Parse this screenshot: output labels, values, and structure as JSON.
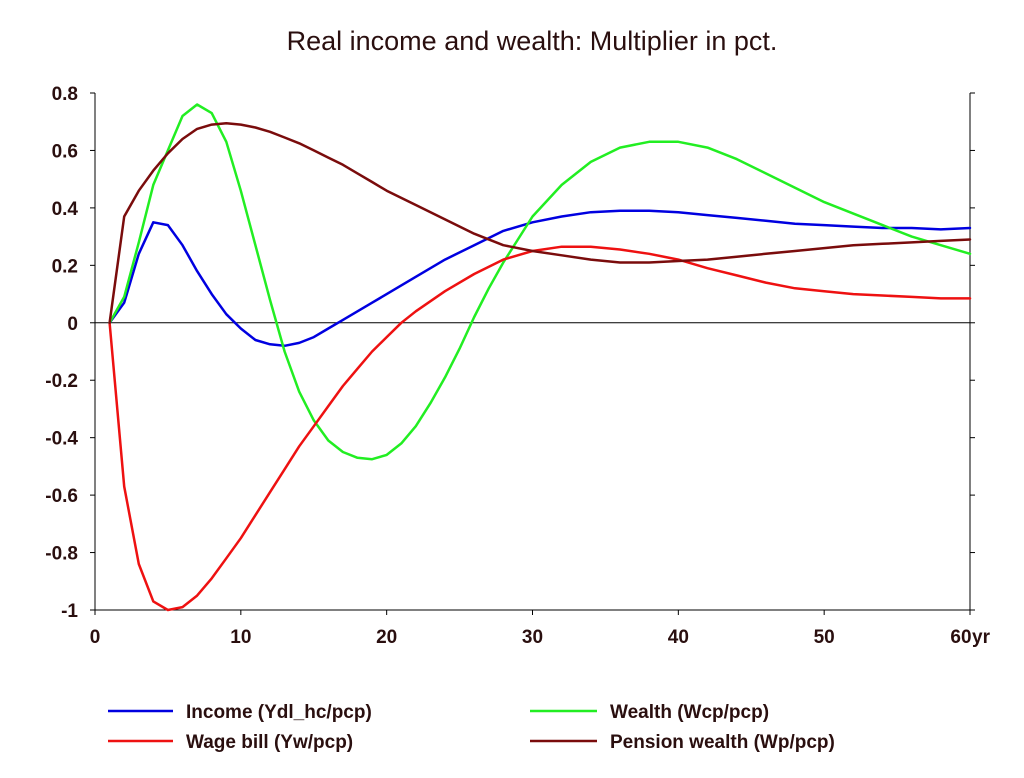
{
  "chart_data": {
    "type": "line",
    "title": "Real income and wealth: Multiplier in pct.",
    "x_unit_label": "yr",
    "xlim": [
      0,
      60
    ],
    "ylim": [
      -1,
      0.8
    ],
    "x_ticks": [
      0,
      10,
      20,
      30,
      40,
      50,
      60
    ],
    "x_tick_labels": [
      "0",
      "10",
      "20",
      "30",
      "40",
      "50",
      "60"
    ],
    "y_ticks": [
      0.8,
      0.6,
      0.4,
      0.2,
      0,
      -0.2,
      -0.4,
      -0.6,
      -0.8,
      -1
    ],
    "y_tick_labels": [
      "0.8",
      "0.6",
      "0.4",
      "0.2",
      "0",
      "-0.2",
      "-0.4",
      "-0.6",
      "-0.8",
      "-1"
    ],
    "zero_line": true,
    "grid": false,
    "legend_position": "bottom",
    "series": [
      {
        "name": "Income (Ydl_hc/pcp)",
        "color": "#0000e0",
        "points": [
          [
            1,
            0
          ],
          [
            2,
            0.07
          ],
          [
            3,
            0.24
          ],
          [
            4,
            0.35
          ],
          [
            5,
            0.34
          ],
          [
            6,
            0.27
          ],
          [
            7,
            0.18
          ],
          [
            8,
            0.1
          ],
          [
            9,
            0.03
          ],
          [
            10,
            -0.02
          ],
          [
            11,
            -0.06
          ],
          [
            12,
            -0.075
          ],
          [
            13,
            -0.08
          ],
          [
            14,
            -0.07
          ],
          [
            15,
            -0.05
          ],
          [
            16,
            -0.02
          ],
          [
            17,
            0.01
          ],
          [
            18,
            0.04
          ],
          [
            19,
            0.07
          ],
          [
            20,
            0.1
          ],
          [
            22,
            0.16
          ],
          [
            24,
            0.22
          ],
          [
            26,
            0.27
          ],
          [
            28,
            0.32
          ],
          [
            30,
            0.35
          ],
          [
            32,
            0.37
          ],
          [
            34,
            0.385
          ],
          [
            36,
            0.39
          ],
          [
            38,
            0.39
          ],
          [
            40,
            0.385
          ],
          [
            42,
            0.375
          ],
          [
            44,
            0.365
          ],
          [
            46,
            0.355
          ],
          [
            48,
            0.345
          ],
          [
            50,
            0.34
          ],
          [
            52,
            0.335
          ],
          [
            54,
            0.33
          ],
          [
            56,
            0.33
          ],
          [
            58,
            0.325
          ],
          [
            60,
            0.33
          ]
        ]
      },
      {
        "name": "Wealth (Wcp/pcp)",
        "color": "#22ee22",
        "points": [
          [
            1,
            0
          ],
          [
            2,
            0.09
          ],
          [
            3,
            0.28
          ],
          [
            4,
            0.48
          ],
          [
            5,
            0.6
          ],
          [
            6,
            0.72
          ],
          [
            7,
            0.76
          ],
          [
            8,
            0.73
          ],
          [
            9,
            0.63
          ],
          [
            10,
            0.46
          ],
          [
            11,
            0.27
          ],
          [
            12,
            0.08
          ],
          [
            13,
            -0.1
          ],
          [
            14,
            -0.24
          ],
          [
            15,
            -0.34
          ],
          [
            16,
            -0.41
          ],
          [
            17,
            -0.45
          ],
          [
            18,
            -0.47
          ],
          [
            19,
            -0.475
          ],
          [
            20,
            -0.46
          ],
          [
            21,
            -0.42
          ],
          [
            22,
            -0.36
          ],
          [
            23,
            -0.28
          ],
          [
            24,
            -0.19
          ],
          [
            25,
            -0.09
          ],
          [
            26,
            0.02
          ],
          [
            27,
            0.12
          ],
          [
            28,
            0.21
          ],
          [
            29,
            0.29
          ],
          [
            30,
            0.37
          ],
          [
            32,
            0.48
          ],
          [
            34,
            0.56
          ],
          [
            36,
            0.61
          ],
          [
            38,
            0.63
          ],
          [
            40,
            0.63
          ],
          [
            42,
            0.61
          ],
          [
            44,
            0.57
          ],
          [
            46,
            0.52
          ],
          [
            48,
            0.47
          ],
          [
            50,
            0.42
          ],
          [
            52,
            0.38
          ],
          [
            54,
            0.34
          ],
          [
            56,
            0.3
          ],
          [
            58,
            0.27
          ],
          [
            60,
            0.24
          ]
        ]
      },
      {
        "name": "Wage bill (Yw/pcp)",
        "color": "#ee1111",
        "points": [
          [
            1,
            0
          ],
          [
            2,
            -0.57
          ],
          [
            3,
            -0.84
          ],
          [
            4,
            -0.97
          ],
          [
            5,
            -1
          ],
          [
            6,
            -0.99
          ],
          [
            7,
            -0.95
          ],
          [
            8,
            -0.89
          ],
          [
            9,
            -0.82
          ],
          [
            10,
            -0.75
          ],
          [
            11,
            -0.67
          ],
          [
            12,
            -0.59
          ],
          [
            13,
            -0.51
          ],
          [
            14,
            -0.43
          ],
          [
            15,
            -0.36
          ],
          [
            16,
            -0.29
          ],
          [
            17,
            -0.22
          ],
          [
            18,
            -0.16
          ],
          [
            19,
            -0.1
          ],
          [
            20,
            -0.05
          ],
          [
            21,
            0.0
          ],
          [
            22,
            0.04
          ],
          [
            24,
            0.11
          ],
          [
            26,
            0.17
          ],
          [
            28,
            0.22
          ],
          [
            30,
            0.25
          ],
          [
            32,
            0.265
          ],
          [
            34,
            0.265
          ],
          [
            36,
            0.255
          ],
          [
            38,
            0.24
          ],
          [
            40,
            0.22
          ],
          [
            42,
            0.19
          ],
          [
            44,
            0.165
          ],
          [
            46,
            0.14
          ],
          [
            48,
            0.12
          ],
          [
            50,
            0.11
          ],
          [
            52,
            0.1
          ],
          [
            54,
            0.095
          ],
          [
            56,
            0.09
          ],
          [
            58,
            0.085
          ],
          [
            60,
            0.085
          ]
        ]
      },
      {
        "name": "Pension wealth (Wp/pcp)",
        "color": "#7a0c0c",
        "points": [
          [
            1,
            0
          ],
          [
            2,
            0.37
          ],
          [
            3,
            0.46
          ],
          [
            4,
            0.53
          ],
          [
            5,
            0.59
          ],
          [
            6,
            0.64
          ],
          [
            7,
            0.675
          ],
          [
            8,
            0.69
          ],
          [
            9,
            0.695
          ],
          [
            10,
            0.69
          ],
          [
            11,
            0.68
          ],
          [
            12,
            0.665
          ],
          [
            13,
            0.645
          ],
          [
            14,
            0.625
          ],
          [
            15,
            0.6
          ],
          [
            16,
            0.575
          ],
          [
            17,
            0.55
          ],
          [
            18,
            0.52
          ],
          [
            19,
            0.49
          ],
          [
            20,
            0.46
          ],
          [
            22,
            0.41
          ],
          [
            24,
            0.36
          ],
          [
            26,
            0.31
          ],
          [
            28,
            0.27
          ],
          [
            30,
            0.25
          ],
          [
            32,
            0.235
          ],
          [
            34,
            0.22
          ],
          [
            36,
            0.21
          ],
          [
            38,
            0.21
          ],
          [
            40,
            0.215
          ],
          [
            42,
            0.22
          ],
          [
            44,
            0.23
          ],
          [
            46,
            0.24
          ],
          [
            48,
            0.25
          ],
          [
            50,
            0.26
          ],
          [
            52,
            0.27
          ],
          [
            54,
            0.275
          ],
          [
            56,
            0.28
          ],
          [
            58,
            0.285
          ],
          [
            60,
            0.29
          ]
        ]
      }
    ]
  }
}
